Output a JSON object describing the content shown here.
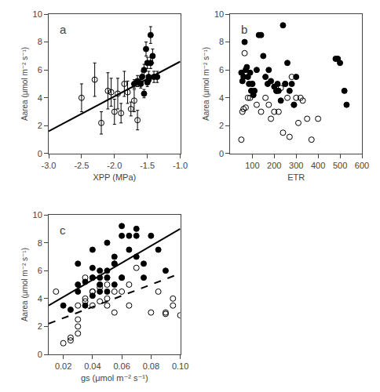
{
  "chart_data": [
    {
      "type": "scatter",
      "annotations": [
        "a"
      ],
      "xlabel": "XPP (MPa)",
      "ylabel": "Aarea (μmol m⁻² s⁻¹)",
      "xlim": [
        -3.0,
        -1.0
      ],
      "ylim": [
        0,
        10
      ],
      "xticks": [
        {
          "value": -3.0,
          "label": "-3.0"
        },
        -2.5,
        {
          "value": -2.0,
          "label": "-2.0"
        },
        -1.5,
        {
          "value": -1.0,
          "label": "-1.0"
        }
      ],
      "yticks": [
        0,
        2,
        4,
        6,
        8,
        10
      ],
      "grid": false,
      "series": [
        {
          "type": "scatter",
          "marker": "circle-open",
          "color": "black",
          "x": [
            -2.5,
            -2.3,
            -2.2,
            -2.1,
            -2.05,
            -2.0,
            -1.95,
            -1.9,
            -1.85,
            -1.8,
            -1.75,
            -1.7,
            -1.65
          ],
          "values": [
            4.0,
            5.3,
            2.2,
            4.5,
            4.4,
            3.0,
            4.3,
            2.9,
            5.0,
            4.4,
            3.2,
            3.8,
            2.4
          ],
          "yerr": [
            1.0,
            1.2,
            0.8,
            1.3,
            1.0,
            0.9,
            1.1,
            0.7,
            0.9,
            0.8,
            0.5,
            0.8,
            0.7
          ]
        },
        {
          "type": "scatter",
          "marker": "circle",
          "color": "black",
          "x": [
            -1.7,
            -1.65,
            -1.6,
            -1.58,
            -1.55,
            -1.55,
            -1.52,
            -1.5,
            -1.5,
            -1.48,
            -1.48,
            -1.45,
            -1.45,
            -1.42,
            -1.4,
            -1.35
          ],
          "values": [
            5.0,
            5.2,
            5.0,
            5.5,
            6.0,
            4.3,
            7.5,
            6.5,
            5.1,
            5.3,
            5.5,
            8.5,
            6.5,
            7.0,
            5.5,
            5.5
          ],
          "yerr": [
            0.3,
            0.4,
            0.3,
            0.4,
            0.4,
            0.3,
            0.5,
            0.4,
            0.3,
            0.3,
            0.4,
            0.6,
            0.4,
            0.5,
            0.4,
            0.4
          ]
        },
        {
          "type": "line",
          "line_style": "solid",
          "color": "black",
          "x": [
            -3.0,
            -1.0
          ],
          "values": [
            1.6,
            6.6
          ]
        }
      ]
    },
    {
      "type": "scatter",
      "annotations": [
        "b"
      ],
      "xlabel": "ETR",
      "ylabel": "Aarea (μmol m⁻² s⁻¹)",
      "xlim": [
        0,
        600
      ],
      "ylim": [
        0,
        10
      ],
      "xticks": [
        100,
        200,
        300,
        400,
        500,
        600
      ],
      "yticks": [
        0,
        2,
        4,
        6,
        8,
        10
      ],
      "grid": false,
      "series": [
        {
          "type": "scatter",
          "marker": "circle-open",
          "color": "black",
          "x": [
            50,
            55,
            60,
            65,
            70,
            75,
            80,
            90,
            100,
            120,
            140,
            160,
            175,
            185,
            200,
            210,
            220,
            230,
            240,
            250,
            260,
            270,
            280,
            290,
            300,
            310,
            320,
            330,
            350,
            370,
            400
          ],
          "values": [
            1.0,
            3.0,
            3.2,
            7.2,
            3.3,
            5.8,
            4.0,
            4.0,
            5.0,
            3.5,
            3.0,
            4.0,
            3.5,
            2.5,
            3.0,
            4.5,
            3.0,
            4.7,
            1.5,
            5.0,
            4.0,
            1.2,
            5.5,
            3.5,
            4.0,
            2.2,
            4.0,
            3.8,
            2.5,
            1.0,
            2.5
          ]
        },
        {
          "type": "scatter",
          "marker": "circle",
          "color": "black",
          "x": [
            50,
            55,
            60,
            65,
            70,
            75,
            80,
            85,
            90,
            95,
            100,
            105,
            110,
            120,
            130,
            140,
            150,
            160,
            170,
            175,
            185,
            200,
            210,
            215,
            220,
            230,
            240,
            250,
            260,
            270,
            280,
            290,
            300,
            480,
            490,
            500,
            520,
            530
          ],
          "values": [
            5.8,
            5.2,
            5.5,
            8.0,
            6.0,
            6.2,
            5.5,
            5.0,
            5.8,
            4.5,
            5.0,
            4.2,
            4.5,
            6.0,
            8.5,
            8.5,
            7.0,
            5.5,
            5.0,
            6.0,
            5.2,
            4.8,
            4.5,
            5.0,
            4.5,
            3.8,
            9.2,
            5.0,
            6.5,
            4.5,
            5.0,
            3.5,
            5.5,
            6.8,
            6.8,
            6.5,
            4.5,
            3.5
          ]
        }
      ]
    },
    {
      "type": "scatter",
      "annotations": [
        "c"
      ],
      "xlabel": "gs (μmol m⁻² s⁻¹)",
      "ylabel": "Aarea (μmol m⁻² s⁻¹)",
      "xlim": [
        0.01,
        0.1
      ],
      "ylim": [
        0,
        10
      ],
      "xticks": [
        0.02,
        0.04,
        0.06,
        0.08,
        {
          "value": 0.1,
          "label": "0.10"
        }
      ],
      "yticks": [
        0,
        2,
        4,
        6,
        8,
        10
      ],
      "grid": false,
      "series": [
        {
          "type": "scatter",
          "marker": "circle-open",
          "color": "black",
          "x": [
            0.015,
            0.02,
            0.025,
            0.025,
            0.03,
            0.03,
            0.03,
            0.03,
            0.035,
            0.035,
            0.035,
            0.04,
            0.04,
            0.04,
            0.04,
            0.045,
            0.045,
            0.045,
            0.05,
            0.05,
            0.05,
            0.05,
            0.055,
            0.055,
            0.055,
            0.06,
            0.06,
            0.065,
            0.065,
            0.07,
            0.08,
            0.085,
            0.09,
            0.09,
            0.095,
            0.095,
            0.1
          ],
          "values": [
            4.5,
            0.8,
            1.2,
            1.0,
            2.5,
            1.5,
            3.5,
            2.0,
            3.8,
            5.5,
            4.0,
            4.5,
            3.5,
            4.5,
            5.5,
            4.8,
            3.8,
            5.0,
            3.5,
            4.0,
            5.0,
            5.5,
            6.5,
            4.5,
            3.0,
            4.5,
            5.5,
            3.5,
            5.0,
            6.2,
            3.0,
            4.5,
            3.0,
            2.9,
            3.5,
            4.0,
            2.8
          ]
        },
        {
          "type": "scatter",
          "marker": "circle",
          "color": "black",
          "x": [
            0.02,
            0.025,
            0.03,
            0.03,
            0.03,
            0.035,
            0.035,
            0.04,
            0.04,
            0.04,
            0.04,
            0.045,
            0.045,
            0.045,
            0.045,
            0.05,
            0.05,
            0.05,
            0.05,
            0.055,
            0.055,
            0.055,
            0.06,
            0.06,
            0.06,
            0.065,
            0.065,
            0.07,
            0.07,
            0.07,
            0.075,
            0.075,
            0.08,
            0.085,
            0.09
          ],
          "values": [
            3.5,
            3.2,
            5.0,
            6.5,
            4.5,
            5.2,
            3.5,
            5.5,
            4.2,
            6.2,
            7.5,
            5.0,
            5.5,
            4.5,
            6.0,
            5.5,
            6.0,
            4.5,
            8.0,
            5.0,
            7.0,
            6.5,
            5.5,
            8.5,
            9.2,
            7.5,
            8.5,
            7.0,
            8.5,
            9.0,
            6.5,
            5.5,
            8.5,
            7.5,
            6.0
          ]
        },
        {
          "type": "line",
          "line_style": "solid",
          "color": "black",
          "x": [
            0.01,
            0.1
          ],
          "values": [
            3.5,
            9.0
          ]
        },
        {
          "type": "line",
          "line_style": "dashed",
          "color": "black",
          "x": [
            0.01,
            0.1
          ],
          "values": [
            2.2,
            5.8
          ]
        }
      ]
    }
  ]
}
